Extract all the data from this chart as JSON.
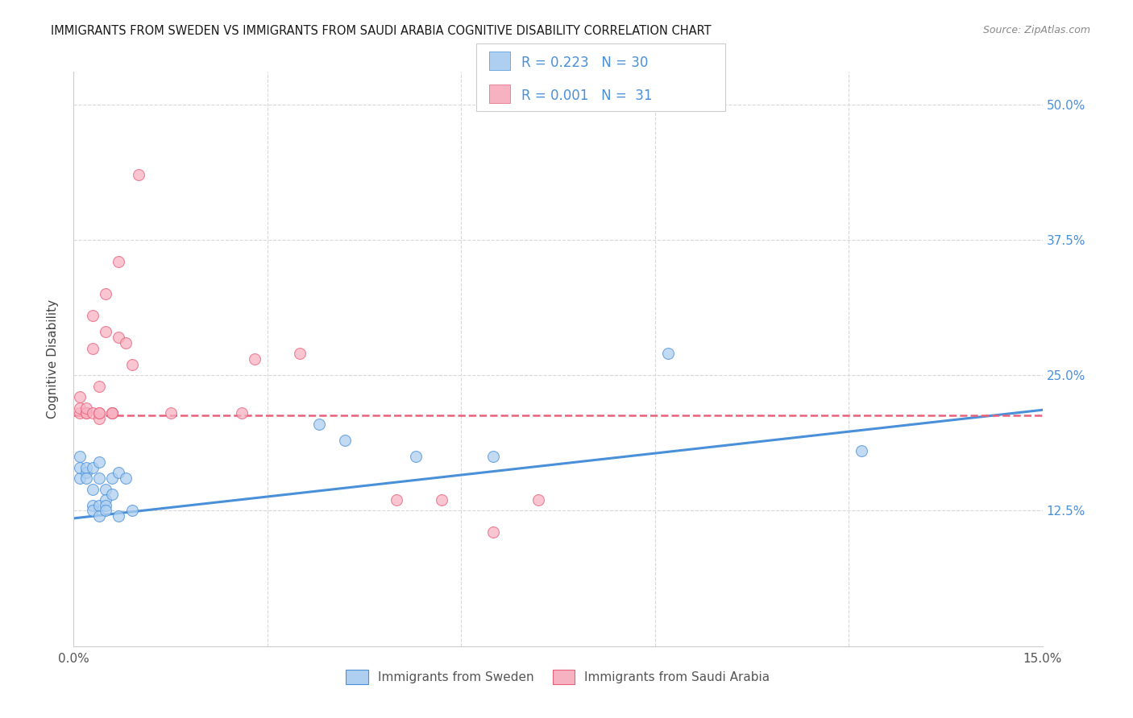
{
  "title": "IMMIGRANTS FROM SWEDEN VS IMMIGRANTS FROM SAUDI ARABIA COGNITIVE DISABILITY CORRELATION CHART",
  "source": "Source: ZipAtlas.com",
  "ylabel": "Cognitive Disability",
  "y_ticks": [
    0.125,
    0.25,
    0.375,
    0.5
  ],
  "y_tick_labels": [
    "12.5%",
    "25.0%",
    "37.5%",
    "50.0%"
  ],
  "xlim": [
    0.0,
    0.15
  ],
  "ylim": [
    0.0,
    0.53
  ],
  "label1": "Immigrants from Sweden",
  "label2": "Immigrants from Saudi Arabia",
  "color1": "#aecff0",
  "color2": "#f7b2c1",
  "line_color1": "#4a90d9",
  "line_color2": "#e8607a",
  "background": "#ffffff",
  "grid_color": "#d8d8d8",
  "blue_scatter_x": [
    0.001,
    0.001,
    0.001,
    0.002,
    0.002,
    0.002,
    0.003,
    0.003,
    0.003,
    0.003,
    0.004,
    0.004,
    0.004,
    0.004,
    0.005,
    0.005,
    0.005,
    0.005,
    0.006,
    0.006,
    0.007,
    0.007,
    0.008,
    0.009,
    0.038,
    0.042,
    0.053,
    0.065,
    0.092,
    0.122
  ],
  "blue_scatter_y": [
    0.155,
    0.165,
    0.175,
    0.16,
    0.165,
    0.155,
    0.165,
    0.145,
    0.13,
    0.125,
    0.17,
    0.155,
    0.13,
    0.12,
    0.145,
    0.135,
    0.13,
    0.125,
    0.155,
    0.14,
    0.16,
    0.12,
    0.155,
    0.125,
    0.205,
    0.19,
    0.175,
    0.175,
    0.27,
    0.18
  ],
  "pink_scatter_x": [
    0.001,
    0.001,
    0.001,
    0.002,
    0.002,
    0.002,
    0.003,
    0.003,
    0.003,
    0.004,
    0.004,
    0.004,
    0.004,
    0.005,
    0.005,
    0.006,
    0.006,
    0.006,
    0.007,
    0.007,
    0.008,
    0.009,
    0.01,
    0.015,
    0.026,
    0.028,
    0.035,
    0.05,
    0.057,
    0.065,
    0.072
  ],
  "pink_scatter_y": [
    0.215,
    0.22,
    0.23,
    0.215,
    0.215,
    0.22,
    0.215,
    0.275,
    0.305,
    0.21,
    0.215,
    0.24,
    0.215,
    0.325,
    0.29,
    0.215,
    0.215,
    0.215,
    0.355,
    0.285,
    0.28,
    0.26,
    0.435,
    0.215,
    0.215,
    0.265,
    0.27,
    0.135,
    0.135,
    0.105,
    0.135
  ],
  "blue_line_x": [
    0.0,
    0.15
  ],
  "blue_line_y": [
    0.118,
    0.218
  ],
  "pink_line_x": [
    0.0,
    0.15
  ],
  "pink_line_y": [
    0.213,
    0.213
  ],
  "marker_size": 100,
  "alpha": 0.75,
  "legend_r1": "R = 0.223",
  "legend_n1": "N = 30",
  "legend_r2": "R = 0.001",
  "legend_n2": "N =  31"
}
